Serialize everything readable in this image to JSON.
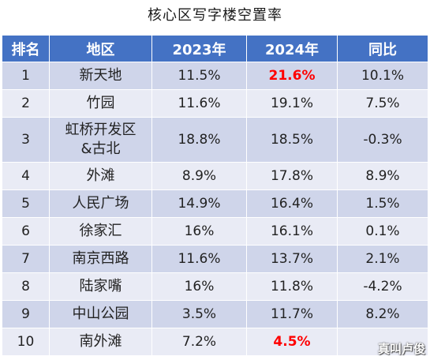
{
  "title": "核心区写字楼空置率",
  "table": {
    "headers": [
      "排名",
      "地区",
      "2023年",
      "2024年",
      "同比"
    ],
    "rows": [
      {
        "rank": "1",
        "district": "新天地",
        "y2023": "11.5%",
        "y2024": "21.6%",
        "yoy": "10.1%",
        "highlight": true
      },
      {
        "rank": "2",
        "district": "竹园",
        "y2023": "11.6%",
        "y2024": "19.1%",
        "yoy": "7.5%"
      },
      {
        "rank": "3",
        "district": "虹桥开发区&古北",
        "district_line1": "虹桥开发区",
        "district_line2": "&古北",
        "y2023": "18.8%",
        "y2024": "18.5%",
        "yoy": "-0.3%"
      },
      {
        "rank": "4",
        "district": "外滩",
        "y2023": "8.9%",
        "y2024": "17.8%",
        "yoy": "8.9%"
      },
      {
        "rank": "5",
        "district": "人民广场",
        "y2023": "14.9%",
        "y2024": "16.4%",
        "yoy": "1.5%"
      },
      {
        "rank": "6",
        "district": "徐家汇",
        "y2023": "16%",
        "y2024": "16.1%",
        "yoy": "0.1%"
      },
      {
        "rank": "7",
        "district": "南京西路",
        "y2023": "11.6%",
        "y2024": "13.7%",
        "yoy": "2.1%"
      },
      {
        "rank": "8",
        "district": "陆家嘴",
        "y2023": "16%",
        "y2024": "11.8%",
        "yoy": "-4.2%"
      },
      {
        "rank": "9",
        "district": "中山公园",
        "y2023": "3.5%",
        "y2024": "11.7%",
        "yoy": "8.2%"
      },
      {
        "rank": "10",
        "district": "南外滩",
        "y2023": "7.2%",
        "y2024": "4.5%",
        "yoy": "",
        "highlight": true
      }
    ]
  },
  "colors": {
    "header_bg": "#4472c4",
    "row_dark": "#cfd5ea",
    "row_light": "#e9ebf5",
    "highlight_text": "#ff0000"
  },
  "watermark": "真叫卢俊"
}
